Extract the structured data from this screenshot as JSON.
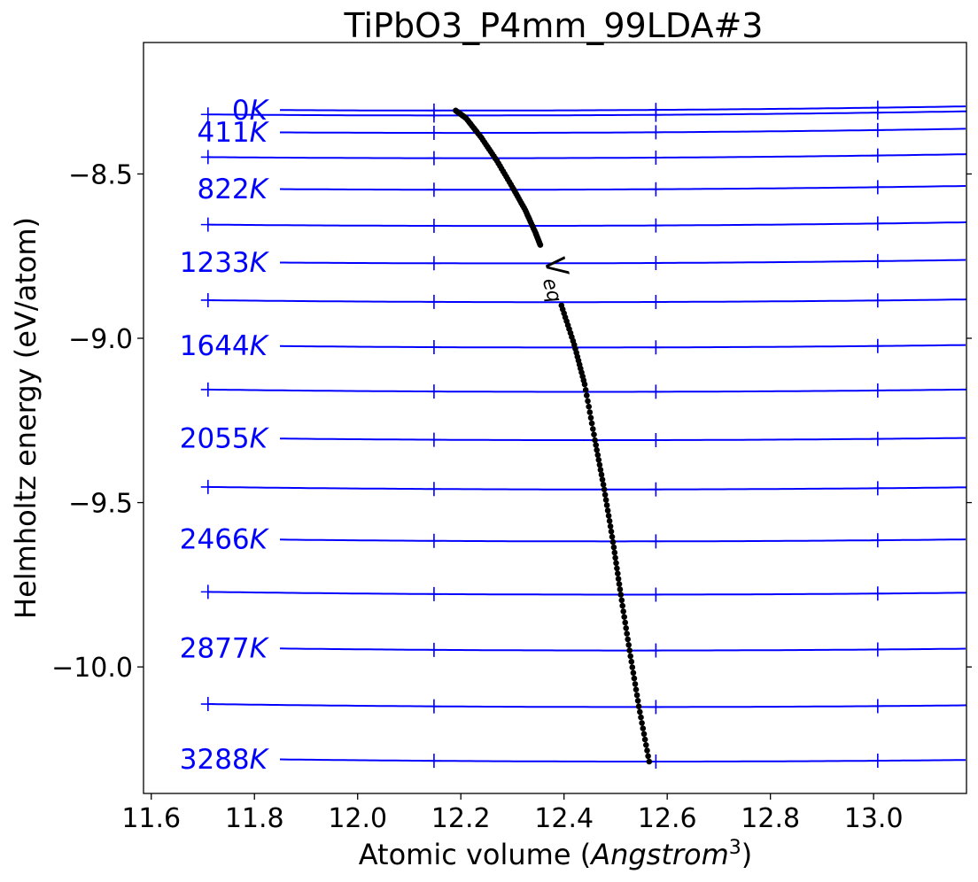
{
  "chart_data": {
    "type": "line",
    "title": "TiPbO3_P4mm_99LDA#3",
    "xlabel": "Atomic volume (Angstrom³)",
    "ylabel": "Helmholtz energy (eV/atom)",
    "xlim": [
      11.585,
      13.18
    ],
    "ylim": [
      -10.385,
      -8.1
    ],
    "grid": false,
    "xticks": [
      11.6,
      11.8,
      12.0,
      12.2,
      12.4,
      12.6,
      12.8,
      13.0
    ],
    "yticks": [
      -8.5,
      -9.0,
      -9.5,
      -10.0
    ],
    "xtick_labels": [
      "11.6",
      "11.8",
      "12.0",
      "12.2",
      "12.4",
      "12.6",
      "12.8",
      "13.0"
    ],
    "ytick_labels": [
      "−8.5",
      "−9.0",
      "−9.5",
      "−10.0"
    ],
    "marker_x": [
      11.71,
      12.148,
      12.578,
      13.008
    ],
    "line_color": "#0000ff",
    "eq_color": "#000000",
    "veq_label": "V",
    "veq_sub": "eq",
    "series": [
      {
        "label": "0K",
        "label_x": 11.746,
        "v0": 12.19,
        "e0": -8.307,
        "k": 0.013,
        "show_label": true
      },
      {
        "label": "",
        "label_x": null,
        "v0": 12.195,
        "e0": -8.322,
        "k": 0.013,
        "show_label": false
      },
      {
        "label": "411K",
        "label_x": 11.746,
        "v0": 12.2,
        "e0": -8.375,
        "k": 0.013,
        "show_label": true
      },
      {
        "label": "",
        "label_x": null,
        "v0": 12.215,
        "e0": -8.452,
        "k": 0.013,
        "show_label": false
      },
      {
        "label": "822K",
        "label_x": 11.746,
        "v0": 12.235,
        "e0": -8.548,
        "k": 0.013,
        "show_label": true
      },
      {
        "label": "",
        "label_x": null,
        "v0": 12.26,
        "e0": -8.658,
        "k": 0.013,
        "show_label": false
      },
      {
        "label": "1233K",
        "label_x": 11.746,
        "v0": 12.285,
        "e0": -8.772,
        "k": 0.013,
        "show_label": true
      },
      {
        "label": "",
        "label_x": null,
        "v0": 12.385,
        "e0": -8.89,
        "k": 0.013,
        "show_label": false
      },
      {
        "label": "1644K",
        "label_x": 11.746,
        "v0": 12.42,
        "e0": -9.028,
        "k": 0.013,
        "show_label": true
      },
      {
        "label": "",
        "label_x": null,
        "v0": 12.44,
        "e0": -9.163,
        "k": 0.013,
        "show_label": false
      },
      {
        "label": "2055K",
        "label_x": 11.746,
        "v0": 12.46,
        "e0": -9.31,
        "k": 0.013,
        "show_label": true
      },
      {
        "label": "",
        "label_x": null,
        "v0": 12.475,
        "e0": -9.46,
        "k": 0.013,
        "show_label": false
      },
      {
        "label": "2466K",
        "label_x": 11.746,
        "v0": 12.495,
        "e0": -9.618,
        "k": 0.013,
        "show_label": true
      },
      {
        "label": "",
        "label_x": null,
        "v0": 12.51,
        "e0": -9.78,
        "k": 0.013,
        "show_label": false
      },
      {
        "label": "2877K",
        "label_x": 11.746,
        "v0": 12.53,
        "e0": -9.95,
        "k": 0.013,
        "show_label": true
      },
      {
        "label": "",
        "label_x": null,
        "v0": 12.545,
        "e0": -10.122,
        "k": 0.013,
        "show_label": false
      },
      {
        "label": "3288K",
        "label_x": 11.746,
        "v0": 12.565,
        "e0": -10.288,
        "k": 0.013,
        "show_label": true
      }
    ],
    "veq_path": [
      [
        12.19,
        -8.307
      ],
      [
        12.21,
        -8.33
      ],
      [
        12.24,
        -8.39
      ],
      [
        12.27,
        -8.46
      ],
      [
        12.3,
        -8.54
      ],
      [
        12.325,
        -8.61
      ],
      [
        12.345,
        -8.68
      ],
      [
        12.355,
        -8.72
      ],
      [
        12.395,
        -8.9
      ],
      [
        12.42,
        -9.02
      ],
      [
        12.44,
        -9.14
      ],
      [
        12.46,
        -9.31
      ],
      [
        12.478,
        -9.46
      ],
      [
        12.495,
        -9.62
      ],
      [
        12.51,
        -9.78
      ],
      [
        12.527,
        -9.95
      ],
      [
        12.545,
        -10.12
      ],
      [
        12.565,
        -10.288
      ]
    ],
    "veq_gap": [
      12.355,
      12.395
    ]
  }
}
